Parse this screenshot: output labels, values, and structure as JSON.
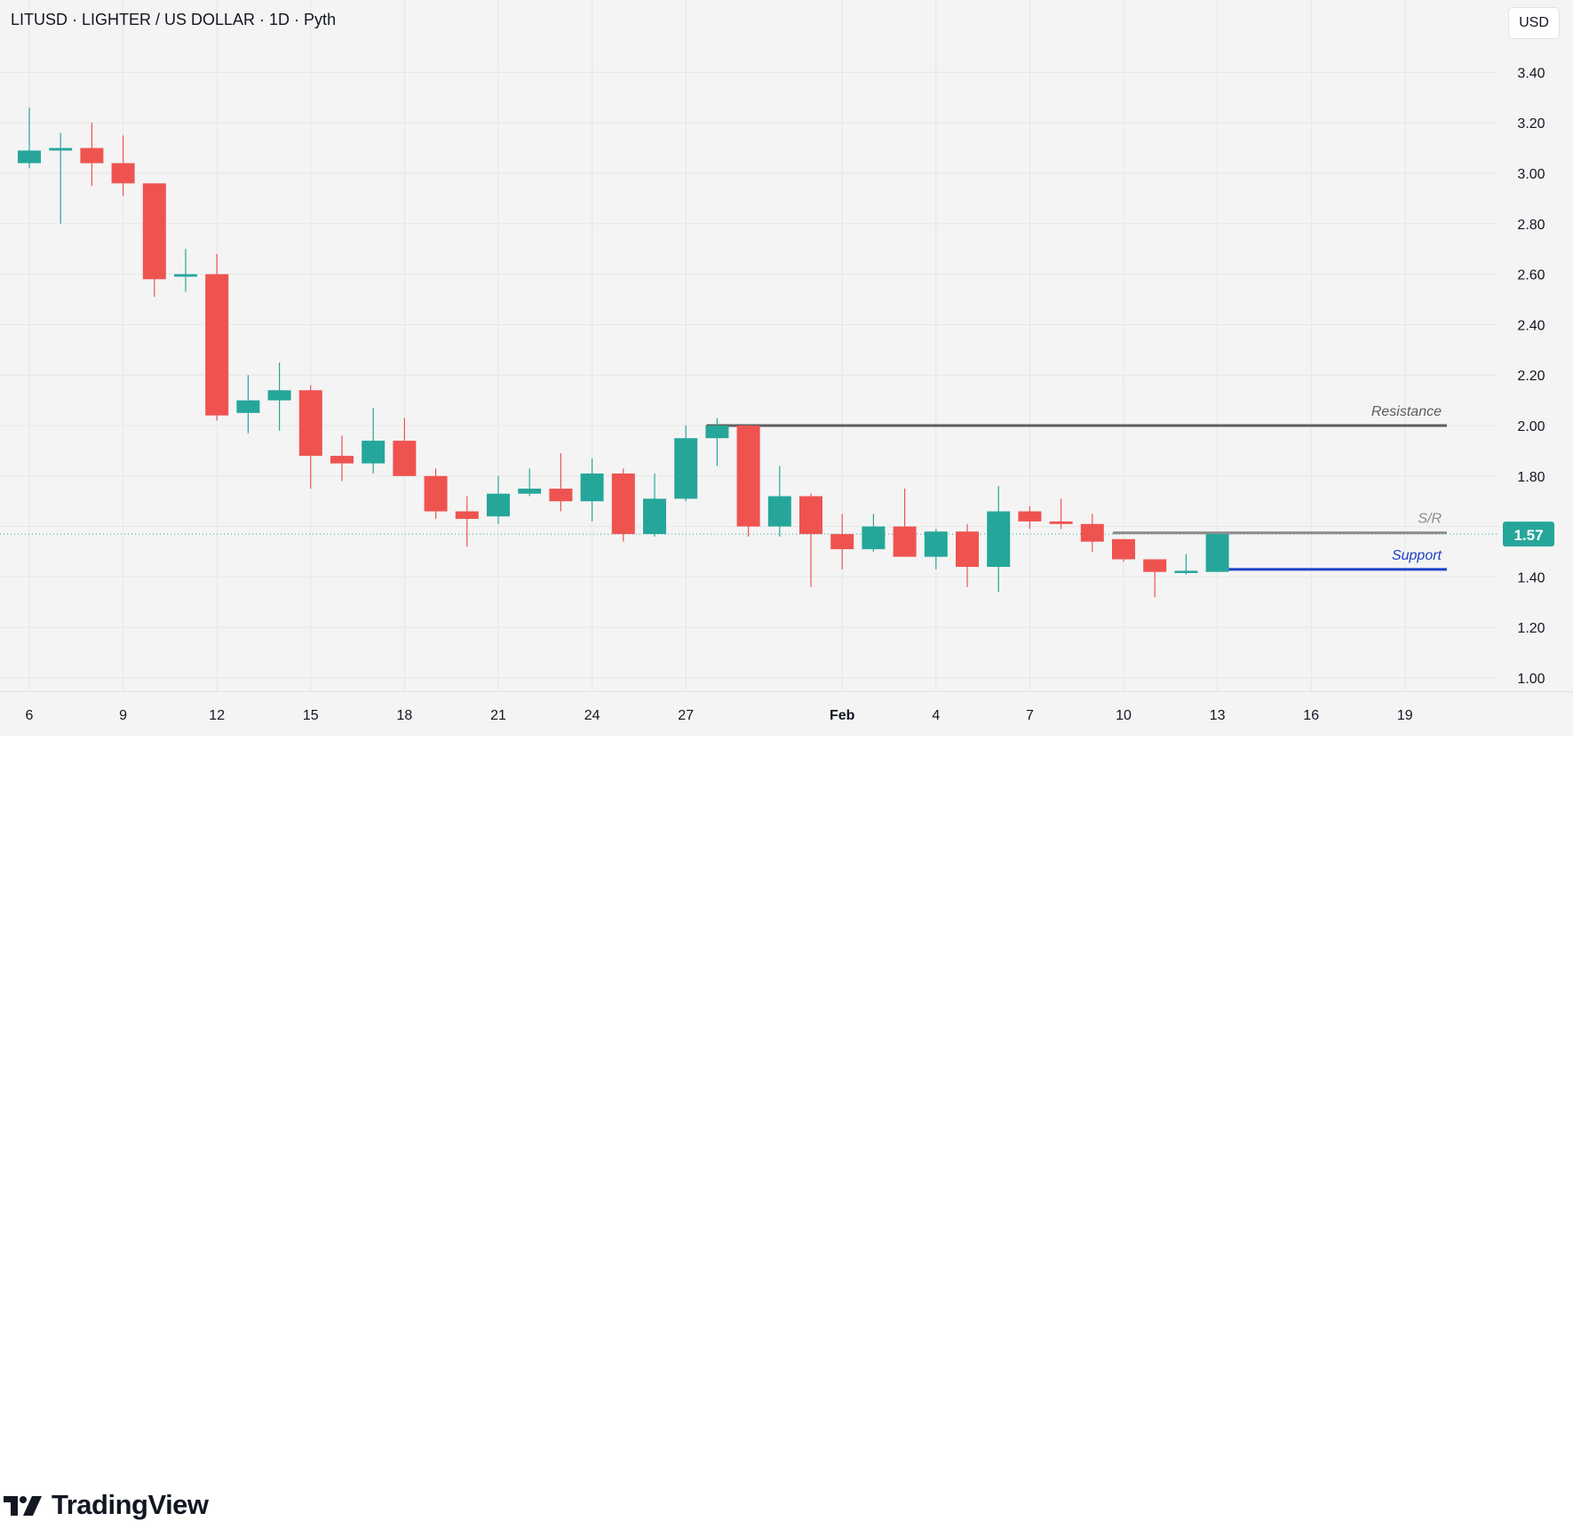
{
  "header": {
    "symbol_title": "LITUSD · LIGHTER / US DOLLAR · 1D · Pyth"
  },
  "currency_button": "USD",
  "branding": {
    "logo_text": "TradingView",
    "logo_icon": "tradingview-logo-icon"
  },
  "colors": {
    "up": "#26a69a",
    "down": "#ef5350",
    "background": "#f4f4f4",
    "grid": "#e6e6e6",
    "text": "#131722",
    "resistance": "#5d5d5d",
    "sr": "#8c8c8c",
    "support": "#1e40c8",
    "price_label": "#26a69a"
  },
  "chart_data": {
    "type": "candlestick",
    "title": "LITUSD · LIGHTER / US DOLLAR · 1D · Pyth",
    "ylabel": "USD",
    "ylim": [
      0.96,
      3.56
    ],
    "grid": true,
    "y_ticks": [
      "1.00",
      "1.20",
      "1.40",
      "1.60",
      "1.80",
      "2.00",
      "2.20",
      "2.40",
      "2.60",
      "2.80",
      "3.00",
      "3.20",
      "3.40"
    ],
    "x_ticks": [
      {
        "label": "6",
        "date": "2026-01-06"
      },
      {
        "label": "9",
        "date": "2026-01-09"
      },
      {
        "label": "12",
        "date": "2026-01-12"
      },
      {
        "label": "15",
        "date": "2026-01-15"
      },
      {
        "label": "18",
        "date": "2026-01-18"
      },
      {
        "label": "21",
        "date": "2026-01-21"
      },
      {
        "label": "24",
        "date": "2026-01-24"
      },
      {
        "label": "27",
        "date": "2026-01-27"
      },
      {
        "label": "Feb",
        "date": "2026-02-01"
      },
      {
        "label": "4",
        "date": "2026-02-04"
      },
      {
        "label": "7",
        "date": "2026-02-07"
      },
      {
        "label": "10",
        "date": "2026-02-10"
      },
      {
        "label": "13",
        "date": "2026-02-13"
      },
      {
        "label": "16",
        "date": "2026-02-16"
      },
      {
        "label": "19",
        "date": "2026-02-19"
      }
    ],
    "candles": [
      {
        "date": "2026-01-06",
        "o": 3.04,
        "h": 3.26,
        "l": 3.02,
        "c": 3.09
      },
      {
        "date": "2026-01-07",
        "o": 3.09,
        "h": 3.16,
        "l": 2.8,
        "c": 3.1
      },
      {
        "date": "2026-01-08",
        "o": 3.1,
        "h": 3.2,
        "l": 2.95,
        "c": 3.04
      },
      {
        "date": "2026-01-09",
        "o": 3.04,
        "h": 3.15,
        "l": 2.91,
        "c": 2.96
      },
      {
        "date": "2026-01-10",
        "o": 2.96,
        "h": 2.96,
        "l": 2.51,
        "c": 2.58
      },
      {
        "date": "2026-01-11",
        "o": 2.59,
        "h": 2.7,
        "l": 2.53,
        "c": 2.6
      },
      {
        "date": "2026-01-12",
        "o": 2.6,
        "h": 2.68,
        "l": 2.02,
        "c": 2.04
      },
      {
        "date": "2026-01-13",
        "o": 2.05,
        "h": 2.2,
        "l": 1.97,
        "c": 2.1
      },
      {
        "date": "2026-01-14",
        "o": 2.1,
        "h": 2.25,
        "l": 1.98,
        "c": 2.14
      },
      {
        "date": "2026-01-15",
        "o": 2.14,
        "h": 2.16,
        "l": 1.75,
        "c": 1.88
      },
      {
        "date": "2026-01-16",
        "o": 1.88,
        "h": 1.96,
        "l": 1.78,
        "c": 1.85
      },
      {
        "date": "2026-01-17",
        "o": 1.85,
        "h": 2.07,
        "l": 1.81,
        "c": 1.94
      },
      {
        "date": "2026-01-18",
        "o": 1.94,
        "h": 2.03,
        "l": 1.8,
        "c": 1.8
      },
      {
        "date": "2026-01-19",
        "o": 1.8,
        "h": 1.83,
        "l": 1.63,
        "c": 1.66
      },
      {
        "date": "2026-01-20",
        "o": 1.66,
        "h": 1.72,
        "l": 1.52,
        "c": 1.63
      },
      {
        "date": "2026-01-21",
        "o": 1.64,
        "h": 1.8,
        "l": 1.61,
        "c": 1.73
      },
      {
        "date": "2026-01-22",
        "o": 1.73,
        "h": 1.83,
        "l": 1.72,
        "c": 1.75
      },
      {
        "date": "2026-01-23",
        "o": 1.75,
        "h": 1.89,
        "l": 1.66,
        "c": 1.7
      },
      {
        "date": "2026-01-24",
        "o": 1.7,
        "h": 1.87,
        "l": 1.62,
        "c": 1.81
      },
      {
        "date": "2026-01-25",
        "o": 1.81,
        "h": 1.83,
        "l": 1.54,
        "c": 1.57
      },
      {
        "date": "2026-01-26",
        "o": 1.57,
        "h": 1.81,
        "l": 1.56,
        "c": 1.71
      },
      {
        "date": "2026-01-27",
        "o": 1.71,
        "h": 2.0,
        "l": 1.7,
        "c": 1.95
      },
      {
        "date": "2026-01-28",
        "o": 1.95,
        "h": 2.03,
        "l": 1.84,
        "c": 2.0
      },
      {
        "date": "2026-01-29",
        "o": 2.0,
        "h": 2.0,
        "l": 1.56,
        "c": 1.6
      },
      {
        "date": "2026-01-30",
        "o": 1.6,
        "h": 1.84,
        "l": 1.56,
        "c": 1.72
      },
      {
        "date": "2026-01-31",
        "o": 1.72,
        "h": 1.73,
        "l": 1.36,
        "c": 1.57
      },
      {
        "date": "2026-02-01",
        "o": 1.57,
        "h": 1.65,
        "l": 1.43,
        "c": 1.51
      },
      {
        "date": "2026-02-02",
        "o": 1.51,
        "h": 1.65,
        "l": 1.5,
        "c": 1.6
      },
      {
        "date": "2026-02-03",
        "o": 1.6,
        "h": 1.75,
        "l": 1.48,
        "c": 1.48
      },
      {
        "date": "2026-02-04",
        "o": 1.48,
        "h": 1.59,
        "l": 1.43,
        "c": 1.58
      },
      {
        "date": "2026-02-05",
        "o": 1.58,
        "h": 1.61,
        "l": 1.36,
        "c": 1.44
      },
      {
        "date": "2026-02-06",
        "o": 1.44,
        "h": 1.76,
        "l": 1.34,
        "c": 1.66
      },
      {
        "date": "2026-02-07",
        "o": 1.66,
        "h": 1.68,
        "l": 1.59,
        "c": 1.62
      },
      {
        "date": "2026-02-08",
        "o": 1.62,
        "h": 1.71,
        "l": 1.59,
        "c": 1.61
      },
      {
        "date": "2026-02-09",
        "o": 1.61,
        "h": 1.65,
        "l": 1.5,
        "c": 1.54
      },
      {
        "date": "2026-02-10",
        "o": 1.55,
        "h": 1.55,
        "l": 1.46,
        "c": 1.47
      },
      {
        "date": "2026-02-11",
        "o": 1.47,
        "h": 1.47,
        "l": 1.32,
        "c": 1.42
      },
      {
        "date": "2026-02-12",
        "o": 1.42,
        "h": 1.49,
        "l": 1.41,
        "c": 1.42
      },
      {
        "date": "2026-02-13",
        "o": 1.42,
        "h": 1.57,
        "l": 1.42,
        "c": 1.57
      }
    ],
    "last_price": "1.57",
    "lines": [
      {
        "label": "Resistance",
        "value": 2.0,
        "from": "2026-01-28",
        "to": "2026-02-20",
        "color": "#5d5d5d"
      },
      {
        "label": "S/R",
        "value": 1.575,
        "from": "2026-02-10",
        "to": "2026-02-20",
        "color": "#8c8c8c"
      },
      {
        "label": "Support",
        "value": 1.43,
        "from": "2026-02-13",
        "to": "2026-02-20",
        "color": "#1e40c8"
      }
    ]
  }
}
